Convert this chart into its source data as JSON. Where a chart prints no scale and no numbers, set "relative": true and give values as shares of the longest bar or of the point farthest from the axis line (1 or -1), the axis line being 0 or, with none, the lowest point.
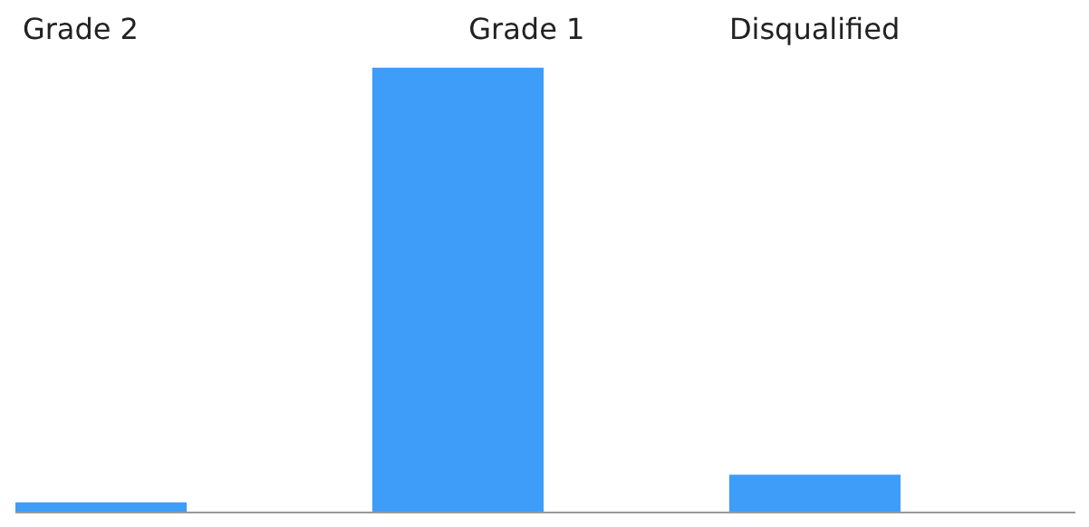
{
  "chart_data": {
    "type": "bar",
    "relative": true,
    "categories": [
      "Grade 2",
      "Grade 1",
      "Disqualified"
    ],
    "values": [
      0.025,
      1,
      0.087
    ],
    "color": "#3d9df8"
  }
}
